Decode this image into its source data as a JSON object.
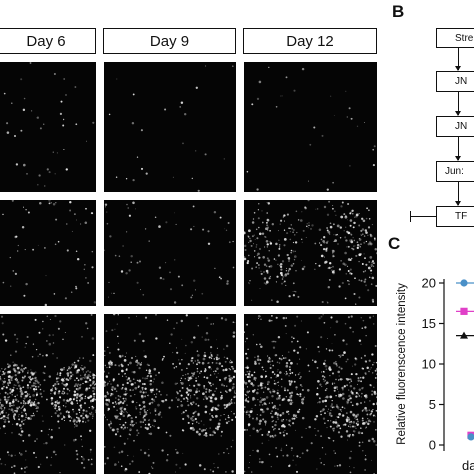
{
  "panel_letters": {
    "b": "B",
    "c": "C"
  },
  "day_labels": [
    "Day 6",
    "Day 9",
    "Day 12"
  ],
  "flowchart": {
    "boxes": [
      "Stre",
      "JN",
      "JN",
      "Jun:",
      "TF"
    ]
  },
  "chart_data": {
    "type": "scatter",
    "ylabel": "Relative fluorenscence intensity",
    "yticks": [
      "0",
      "5",
      "10",
      "15",
      "20"
    ],
    "ylim": [
      0,
      20
    ],
    "xtick_partial": "day",
    "series": [
      {
        "marker": "circle",
        "color": "#4a90c8",
        "legend_y": 20
      },
      {
        "marker": "square",
        "color": "#e040c8",
        "legend_y": 16.5
      },
      {
        "marker": "triangle",
        "color": "#111111",
        "legend_y": 13.5
      }
    ],
    "points": [
      {
        "x": "day",
        "y": 1.2,
        "marker": "square",
        "color": "#e040c8"
      },
      {
        "x": "day",
        "y": 1.0,
        "marker": "circle",
        "color": "#4a90c8"
      }
    ]
  },
  "colors": {
    "panel_background": "#050505",
    "speckle": "#e8e8e8"
  }
}
